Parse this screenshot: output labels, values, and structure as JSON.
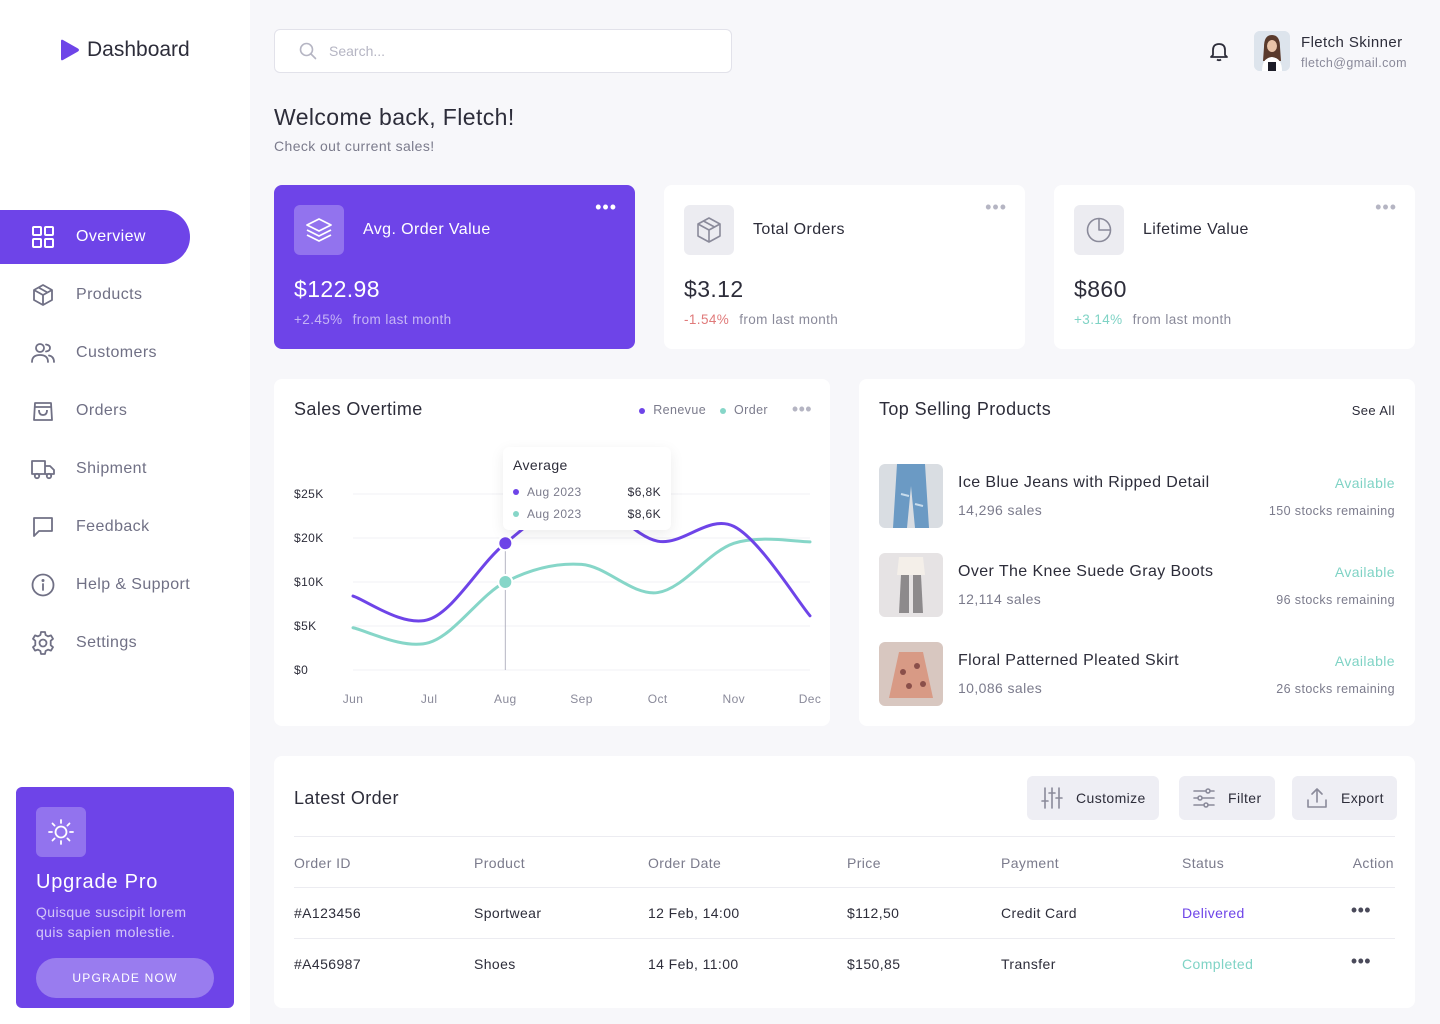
{
  "brand": {
    "name": "Dashboard",
    "accent": "#6e44e8"
  },
  "sidebar": {
    "items": [
      {
        "label": "Overview",
        "icon": "grid-icon",
        "active": true
      },
      {
        "label": "Products",
        "icon": "box-icon"
      },
      {
        "label": "Customers",
        "icon": "users-icon"
      },
      {
        "label": "Orders",
        "icon": "bag-icon"
      },
      {
        "label": "Shipment",
        "icon": "truck-icon"
      },
      {
        "label": "Feedback",
        "icon": "message-icon"
      },
      {
        "label": "Help & Support",
        "icon": "info-icon"
      },
      {
        "label": "Settings",
        "icon": "gear-icon"
      }
    ],
    "upgrade": {
      "title": "Upgrade Pro",
      "description": "Quisque suscipit lorem quis sapien molestie.",
      "button": "UPGRADE NOW"
    }
  },
  "header": {
    "search_placeholder": "Search...",
    "user": {
      "name": "Fletch Skinner",
      "email": "fletch@gmail.com"
    }
  },
  "welcome": {
    "title": "Welcome back, Fletch!",
    "subtitle": "Check out current sales!"
  },
  "stats": [
    {
      "title": "Avg. Order Value",
      "value": "$122.98",
      "change": "+2.45%",
      "suffix": "from last month",
      "change_color": "rgba(255,255,255,0.6)"
    },
    {
      "title": "Total Orders",
      "value": "$3.12",
      "change": "-1.54%",
      "suffix": "from last month",
      "change_color": "#e07a7a"
    },
    {
      "title": "Lifetime Value",
      "value": "$860",
      "change": "+3.14%",
      "suffix": "from last month",
      "change_color": "#7fd3c5"
    }
  ],
  "sales": {
    "title": "Sales Overtime",
    "legend": [
      "Renevue",
      "Order"
    ],
    "tooltip": {
      "title": "Average",
      "rows": [
        {
          "label": "Aug 2023",
          "value": "$6,8K"
        },
        {
          "label": "Aug 2023",
          "value": "$8,6K"
        }
      ]
    }
  },
  "chart_data": {
    "type": "line",
    "x": [
      "Jun",
      "Jul",
      "Aug",
      "Sep",
      "Oct",
      "Nov",
      "Dec"
    ],
    "y_ticks": [
      "$25K",
      "$20K",
      "$10K",
      "$5K",
      "$0"
    ],
    "series": [
      {
        "name": "Renevue",
        "color": "#6e44e8",
        "values": [
          10.5,
          7.2,
          18.0,
          24.5,
          18.3,
          20.4,
          7.7
        ]
      },
      {
        "name": "Order",
        "color": "#86d6c8",
        "values": [
          6.0,
          3.9,
          12.5,
          15.0,
          11.0,
          18.0,
          18.2
        ]
      }
    ]
  },
  "top_products": {
    "title": "Top Selling Products",
    "see_all": "See All",
    "items": [
      {
        "name": "Ice Blue Jeans with Ripped Detail",
        "sales": "14,296 sales",
        "status": "Available",
        "stock": "150 stocks remaining"
      },
      {
        "name": "Over The Knee Suede Gray Boots",
        "sales": "12,114 sales",
        "status": "Available",
        "stock": "96 stocks remaining"
      },
      {
        "name": "Floral Patterned Pleated Skirt",
        "sales": "10,086 sales",
        "status": "Available",
        "stock": "26 stocks remaining"
      }
    ]
  },
  "orders": {
    "title": "Latest Order",
    "buttons": {
      "customize": "Customize",
      "filter": "Filter",
      "export": "Export"
    },
    "columns": [
      "Order ID",
      "Product",
      "Order Date",
      "Price",
      "Payment",
      "Status",
      "Action"
    ],
    "rows": [
      {
        "id": "#A123456",
        "product": "Sportwear",
        "date": "12 Feb, 14:00",
        "price": "$112,50",
        "payment": "Credit Card",
        "status": "Delivered",
        "status_color": "#6e44e8"
      },
      {
        "id": "#A456987",
        "product": "Shoes",
        "date": "14 Feb, 11:00",
        "price": "$150,85",
        "payment": "Transfer",
        "status": "Completed",
        "status_color": "#7fd3c5"
      }
    ]
  }
}
